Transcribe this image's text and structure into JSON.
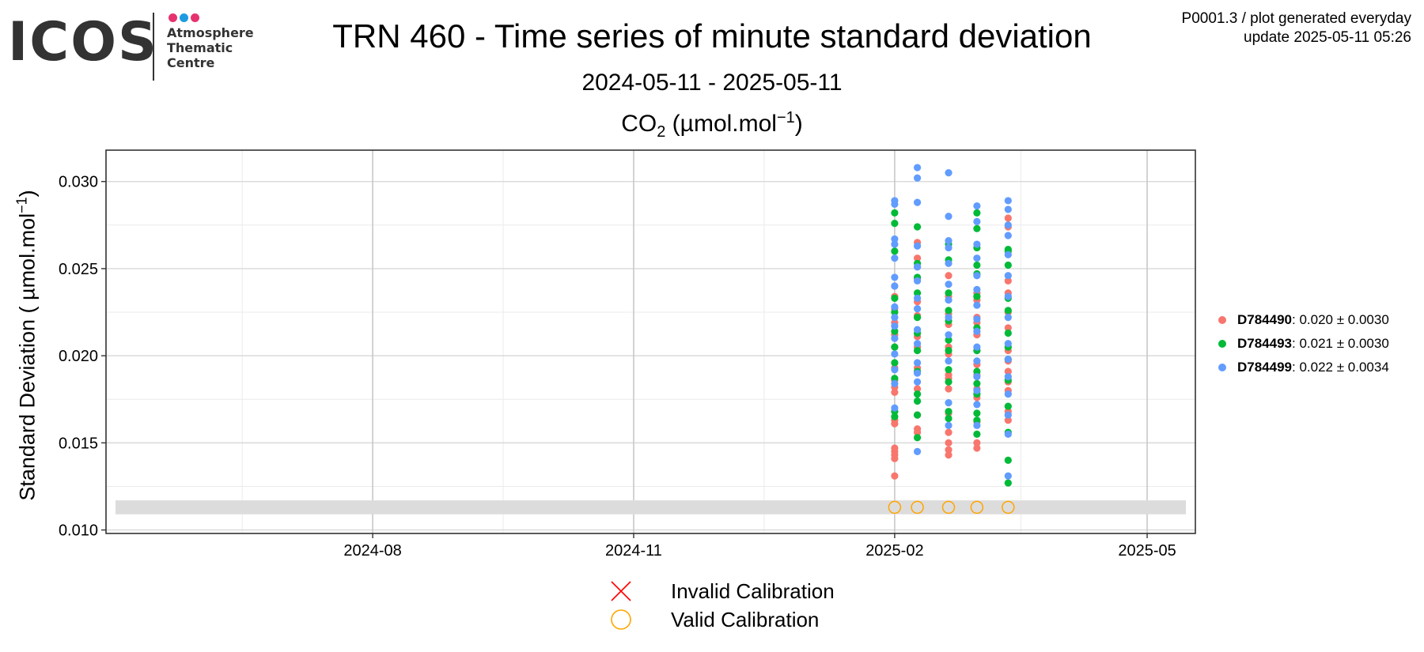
{
  "logo": {
    "word": "ICOS",
    "lines": [
      "Atmosphere",
      "Thematic",
      "Centre"
    ],
    "dot_colors": [
      "#e6336f",
      "#1e9be0",
      "#e6336f"
    ]
  },
  "header": {
    "title": "TRN 460 - Time series of minute standard deviation",
    "subtitle": "2024-05-11 - 2025-05-11",
    "plot_title_prefix": "CO",
    "plot_title_sub": "2",
    "plot_title_mid": " (µmol.mol",
    "plot_title_sup": "−1",
    "plot_title_suffix": ")",
    "meta_line1": "P0001.3 / plot generated everyday",
    "meta_line2": "update  2025-05-11 05:26"
  },
  "yaxis": {
    "label_prefix": "Standard Deviation ( µmol.mol",
    "label_sup": "−1",
    "label_suffix": ")"
  },
  "legend": {
    "items": [
      {
        "id": "D784490",
        "stats": ": 0.020 ± 0.0030",
        "color": "#f8766d"
      },
      {
        "id": "D784493",
        "stats": ": 0.021 ± 0.0030",
        "color": "#00ba38"
      },
      {
        "id": "D784499",
        "stats": ": 0.022 ± 0.0034",
        "color": "#619cff"
      }
    ]
  },
  "calibration_legend": {
    "invalid_label": "Invalid Calibration",
    "valid_label": "Valid Calibration",
    "invalid_color": "#ff0000",
    "valid_color": "#ffa500"
  },
  "chart_data": {
    "type": "scatter",
    "title": "CO2 (µmol.mol−1)",
    "ylabel": "Standard Deviation ( µmol.mol−1)",
    "ylim": [
      0.0098,
      0.0318
    ],
    "xlim": [
      "2024-05-11",
      "2025-05-11"
    ],
    "x_ticks": [
      "2024-08",
      "2024-11",
      "2025-02",
      "2025-05"
    ],
    "y_ticks": [
      0.01,
      0.015,
      0.02,
      0.025,
      0.03
    ],
    "y_tick_labels": [
      "0.010",
      "0.015",
      "0.020",
      "0.025",
      "0.030"
    ],
    "grid": true,
    "legend_position": "right",
    "reference_band": [
      0.0109,
      0.0117
    ],
    "series": [
      {
        "name": "D784490",
        "color": "#f8766d",
        "groups": [
          {
            "x": "2025-02-01",
            "values": [
              0.0131,
              0.0141,
              0.0143,
              0.0145,
              0.0147,
              0.0161,
              0.0163,
              0.0179,
              0.0182,
              0.0186,
              0.0193,
              0.0205,
              0.0212,
              0.0219,
              0.0227,
              0.0234,
              0.024
            ]
          },
          {
            "x": "2025-02-09",
            "values": [
              0.0156,
              0.0158,
              0.0166,
              0.0181,
              0.0193,
              0.0205,
              0.0211,
              0.0223,
              0.0231,
              0.0244,
              0.0251,
              0.0256,
              0.0265
            ]
          },
          {
            "x": "2025-02-20",
            "values": [
              0.0143,
              0.0146,
              0.015,
              0.0156,
              0.0167,
              0.0181,
              0.0187,
              0.0189,
              0.0201,
              0.0205,
              0.0218,
              0.0224,
              0.0234,
              0.0246
            ]
          },
          {
            "x": "2025-03-02",
            "values": [
              0.0147,
              0.015,
              0.0162,
              0.0176,
              0.0181,
              0.0189,
              0.0195,
              0.0203,
              0.0212,
              0.0219,
              0.0222,
              0.0232,
              0.0236
            ]
          },
          {
            "x": "2025-03-13",
            "values": [
              0.0163,
              0.0168,
              0.018,
              0.0185,
              0.0191,
              0.0197,
              0.0203,
              0.0216,
              0.0225,
              0.0236,
              0.0243,
              0.0274,
              0.0279
            ]
          }
        ]
      },
      {
        "name": "D784493",
        "color": "#00ba38",
        "groups": [
          {
            "x": "2025-02-01",
            "values": [
              0.0165,
              0.0168,
              0.0187,
              0.0196,
              0.0205,
              0.0214,
              0.0225,
              0.0233,
              0.026,
              0.0276,
              0.0282
            ]
          },
          {
            "x": "2025-02-09",
            "values": [
              0.0153,
              0.0166,
              0.0174,
              0.0178,
              0.0191,
              0.0203,
              0.0213,
              0.0222,
              0.0236,
              0.0245,
              0.0253,
              0.0274
            ]
          },
          {
            "x": "2025-02-20",
            "values": [
              0.0164,
              0.0168,
              0.0185,
              0.0192,
              0.0203,
              0.0209,
              0.022,
              0.0226,
              0.0236,
              0.0255,
              0.0264
            ]
          },
          {
            "x": "2025-03-02",
            "values": [
              0.0155,
              0.0163,
              0.0167,
              0.0178,
              0.0184,
              0.0191,
              0.0203,
              0.0216,
              0.0234,
              0.0247,
              0.0252,
              0.0262,
              0.0273,
              0.0282
            ]
          },
          {
            "x": "2025-03-13",
            "values": [
              0.0127,
              0.014,
              0.0156,
              0.0171,
              0.0186,
              0.0198,
              0.0205,
              0.0213,
              0.0226,
              0.0233,
              0.0252,
              0.026,
              0.0261
            ]
          }
        ]
      },
      {
        "name": "D784499",
        "color": "#619cff",
        "groups": [
          {
            "x": "2025-02-01",
            "values": [
              0.017,
              0.0184,
              0.0192,
              0.0201,
              0.021,
              0.0217,
              0.0222,
              0.0228,
              0.024,
              0.0245,
              0.0256,
              0.0264,
              0.0267,
              0.0287,
              0.0289
            ]
          },
          {
            "x": "2025-02-09",
            "values": [
              0.0145,
              0.0185,
              0.019,
              0.0196,
              0.0207,
              0.0215,
              0.0227,
              0.0233,
              0.0243,
              0.0251,
              0.0263,
              0.0288,
              0.0302,
              0.0308
            ]
          },
          {
            "x": "2025-02-20",
            "values": [
              0.016,
              0.0173,
              0.0197,
              0.0212,
              0.0222,
              0.0232,
              0.0241,
              0.0253,
              0.0262,
              0.0266,
              0.028,
              0.0305
            ]
          },
          {
            "x": "2025-03-02",
            "values": [
              0.016,
              0.0172,
              0.018,
              0.0188,
              0.0197,
              0.0205,
              0.0214,
              0.0221,
              0.0229,
              0.0238,
              0.0246,
              0.0256,
              0.0264,
              0.0277,
              0.0286
            ]
          },
          {
            "x": "2025-03-13",
            "values": [
              0.0131,
              0.0155,
              0.0166,
              0.0178,
              0.0188,
              0.0198,
              0.0207,
              0.0222,
              0.0234,
              0.0246,
              0.0258,
              0.0269,
              0.0275,
              0.0284,
              0.0289
            ]
          }
        ]
      }
    ],
    "valid_calibrations": [
      {
        "x": "2025-02-01",
        "y": 0.0113
      },
      {
        "x": "2025-02-09",
        "y": 0.0113
      },
      {
        "x": "2025-02-20",
        "y": 0.0113
      },
      {
        "x": "2025-03-02",
        "y": 0.0113
      },
      {
        "x": "2025-03-13",
        "y": 0.0113
      }
    ]
  }
}
